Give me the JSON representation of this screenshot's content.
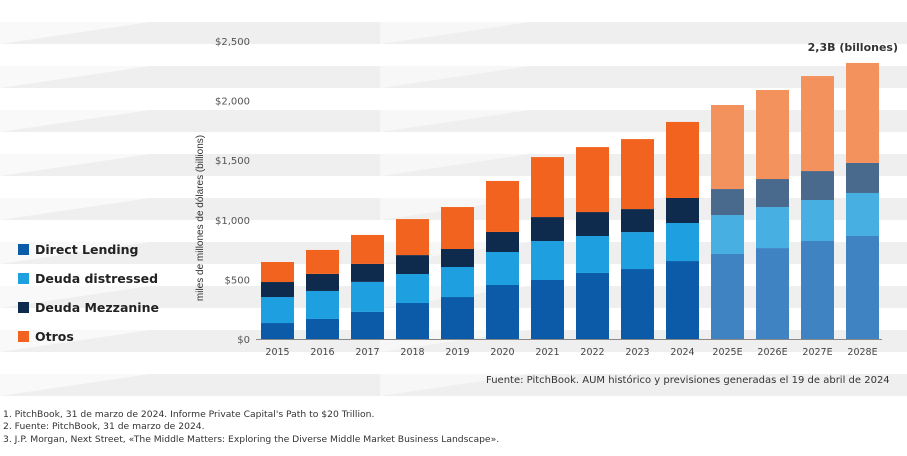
{
  "chart_data": {
    "type": "bar",
    "stacked": true,
    "title": "",
    "xlabel": "",
    "ylabel": "miles de millones de dólares (billions)",
    "ylim": [
      0,
      2500
    ],
    "yticks": [
      0,
      500,
      1000,
      1500,
      2000,
      2500
    ],
    "ytick_labels": [
      "$0",
      "$500",
      "$1,000",
      "$1,500",
      "$2,000",
      "$2,500"
    ],
    "categories": [
      "2015",
      "2016",
      "2017",
      "2018",
      "2019",
      "2020",
      "2021",
      "2022",
      "2023",
      "2024",
      "2025E",
      "2026E",
      "2027E",
      "2028E"
    ],
    "projected_from_index": 10,
    "series": [
      {
        "name": "Direct Lending",
        "color": "#0B5BA8",
        "projected_color": "#3F83C2",
        "values": [
          134,
          168,
          227,
          302,
          352,
          453,
          495,
          554,
          587,
          654,
          713,
          763,
          822,
          864
        ]
      },
      {
        "name": "Deuda distressed",
        "color": "#1E9FDF",
        "projected_color": "#48AFE3",
        "values": [
          218,
          235,
          252,
          243,
          252,
          277,
          327,
          310,
          310,
          319,
          327,
          344,
          344,
          361
        ]
      },
      {
        "name": "Deuda Mezzanine",
        "color": "#0E2A4D",
        "projected_color": "#49698D",
        "values": [
          126,
          143,
          151,
          159,
          151,
          168,
          201,
          201,
          193,
          210,
          218,
          235,
          243,
          252
        ]
      },
      {
        "name": "Otros",
        "color": "#F1631F",
        "projected_color": "#F4925E",
        "values": [
          168,
          201,
          243,
          302,
          352,
          428,
          503,
          545,
          587,
          638,
          705,
          747,
          797,
          839
        ]
      }
    ],
    "annotation": "2,3B (billones)",
    "legend_position": "left",
    "grid": false
  },
  "source": "Fuente: PitchBook. AUM histórico y previsiones generadas el 19 de abril de 2024",
  "footnotes": [
    "1. PitchBook, 31 de marzo de 2024. Informe Private Capital's Path to $20 Trillion.",
    "2. Fuente: PitchBook, 31 de marzo de 2024.",
    "3. J.P. Morgan, Next Street, «The Middle Matters: Exploring the Diverse Middle Market Business Landscape»."
  ],
  "colors": {
    "axis": "#888888",
    "stripe": "#efefef"
  }
}
